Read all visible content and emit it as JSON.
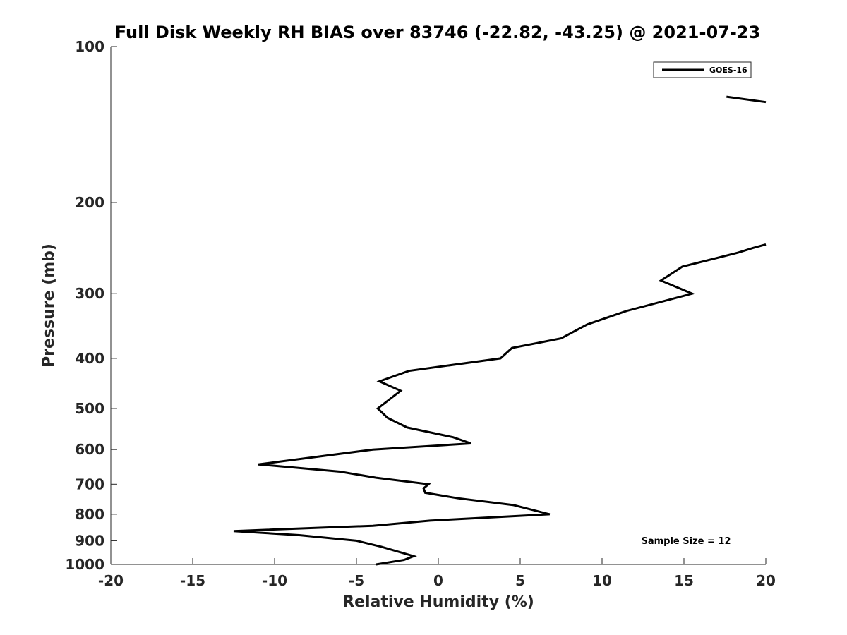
{
  "chart_data": {
    "type": "line",
    "title": "Full Disk Weekly RH BIAS over 83746 (-22.82, -43.25) @ 2021-07-23",
    "xlabel": "Relative Humidity (%)",
    "ylabel": "Pressure (mb)",
    "xlim": [
      -20,
      20
    ],
    "ylim": [
      100,
      1000
    ],
    "y_scale": "log",
    "y_reversed": true,
    "x_ticks": [
      -20,
      -15,
      -10,
      -5,
      0,
      5,
      10,
      15,
      20
    ],
    "y_ticks": [
      100,
      200,
      300,
      400,
      500,
      600,
      700,
      800,
      900,
      1000
    ],
    "grid": false,
    "legend": {
      "position": "top-right",
      "entries": [
        "GOES-16"
      ]
    },
    "annotation": "Sample Size = 12",
    "series": [
      {
        "name": "GOES-16",
        "color": "#000000",
        "segments": [
          [
            [
              17.6,
              125
            ],
            [
              20.0,
              128
            ]
          ],
          [
            [
              20.0,
              241
            ],
            [
              19.2,
              245
            ],
            [
              18.3,
              250
            ],
            [
              14.9,
              266
            ],
            [
              13.6,
              283
            ],
            [
              15.5,
              300
            ],
            [
              11.5,
              324
            ],
            [
              9.1,
              344
            ],
            [
              7.5,
              366
            ],
            [
              4.5,
              382
            ],
            [
              3.8,
              400
            ],
            [
              -1.8,
              423
            ],
            [
              -3.6,
              443
            ],
            [
              -2.3,
              462
            ],
            [
              -3.7,
              500
            ],
            [
              -3.1,
              521
            ],
            [
              -1.9,
              544
            ],
            [
              0.9,
              568
            ],
            [
              2.0,
              584
            ],
            [
              -4.0,
              600
            ],
            [
              -11.0,
              641
            ],
            [
              -6.0,
              662
            ],
            [
              -3.8,
              680
            ],
            [
              -0.6,
              700
            ],
            [
              -0.9,
              713
            ],
            [
              -0.8,
              727
            ],
            [
              1.2,
              745
            ],
            [
              4.6,
              768
            ],
            [
              6.8,
              800
            ],
            [
              -0.5,
              823
            ],
            [
              -4.0,
              842
            ],
            [
              -12.5,
              862
            ],
            [
              -8.5,
              878
            ],
            [
              -5.0,
              900
            ],
            [
              -3.5,
              924
            ],
            [
              -2.2,
              950
            ],
            [
              -1.5,
              964
            ],
            [
              -2.1,
              980
            ],
            [
              -3.8,
              1000
            ]
          ]
        ]
      }
    ]
  }
}
